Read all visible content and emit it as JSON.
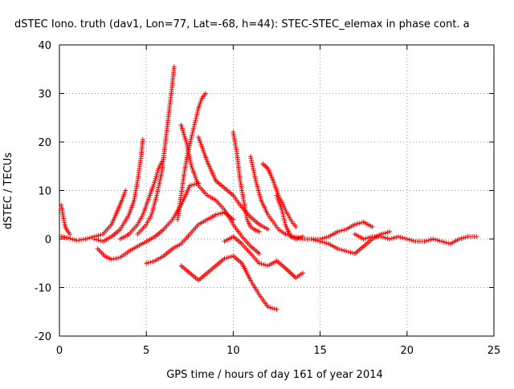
{
  "chart_data": {
    "type": "scatter",
    "title": "dSTEC Iono. truth (dav1, Lon=77, Lat=-68, h=44): STEC-STEC_elemax in phase cont. a",
    "xlabel": "GPS time / hours of day 161 of year 2014",
    "ylabel": "dSTEC  / TECUs",
    "xlim": [
      0,
      25
    ],
    "ylim": [
      -20,
      40
    ],
    "xticks": [
      0,
      5,
      10,
      15,
      20,
      25
    ],
    "yticks": [
      -20,
      -10,
      0,
      10,
      20,
      30,
      40
    ],
    "xtick_labels": [
      "0",
      "5",
      "10",
      "15",
      "20",
      "25"
    ],
    "ytick_labels": [
      "-20",
      "-10",
      "0",
      "10",
      "20",
      "30",
      "40"
    ],
    "grid": true,
    "marker": "+",
    "color": "#ff0000",
    "series": [
      {
        "x": [
          0.1,
          0.5,
          1.0,
          1.5,
          2.0,
          2.5,
          3.0,
          3.3,
          3.6,
          3.8
        ],
        "y": [
          0.5,
          0.2,
          -0.3,
          0.0,
          0.5,
          1.0,
          3.0,
          5.5,
          8.0,
          10.0
        ]
      },
      {
        "x": [
          2.0,
          2.5,
          3.0,
          3.5,
          4.0,
          4.3,
          4.5,
          4.7,
          4.8
        ],
        "y": [
          0.0,
          -0.5,
          0.5,
          2.0,
          5.0,
          8.0,
          12.0,
          17.0,
          20.5
        ]
      },
      {
        "x": [
          3.5,
          4.0,
          4.5,
          4.8,
          5.0,
          5.2,
          5.5,
          5.7,
          5.9
        ],
        "y": [
          0.0,
          1.0,
          3.0,
          5.0,
          7.0,
          9.0,
          12.0,
          14.5,
          16.0
        ]
      },
      {
        "x": [
          4.5,
          5.0,
          5.3,
          5.6,
          5.9,
          6.1,
          6.3,
          6.5,
          6.6
        ],
        "y": [
          1.0,
          3.0,
          5.0,
          9.0,
          14.0,
          20.0,
          26.0,
          32.0,
          35.5
        ]
      },
      {
        "x": [
          2.2,
          2.6,
          3.0,
          3.5,
          4.0,
          4.5,
          5.0,
          5.5,
          6.0,
          6.5,
          7.0,
          7.5,
          8.0
        ],
        "y": [
          -2.0,
          -3.5,
          -4.2,
          -3.8,
          -2.5,
          -1.5,
          -0.5,
          0.5,
          2.0,
          4.0,
          7.0,
          11.0,
          11.5
        ]
      },
      {
        "x": [
          6.8,
          7.0,
          7.2,
          7.4,
          7.6,
          7.8,
          8.0,
          8.2,
          8.4
        ],
        "y": [
          4.0,
          9.0,
          14.0,
          18.0,
          21.0,
          24.0,
          27.0,
          29.0,
          30.0
        ]
      },
      {
        "x": [
          7.0,
          7.3,
          7.6,
          8.0,
          8.5,
          9.0,
          9.5,
          10.0,
          10.5,
          11.0,
          11.5
        ],
        "y": [
          23.5,
          20.0,
          15.0,
          11.0,
          9.0,
          8.0,
          6.0,
          3.0,
          0.5,
          -1.5,
          -3.0
        ]
      },
      {
        "x": [
          8.0,
          8.5,
          9.0,
          9.5,
          10.0,
          10.5,
          11.0,
          11.5,
          12.0
        ],
        "y": [
          21.0,
          16.0,
          12.0,
          10.5,
          9.0,
          6.5,
          4.5,
          3.0,
          2.0
        ]
      },
      {
        "x": [
          10.0,
          10.2,
          10.4,
          10.6,
          10.8,
          11.0,
          11.2,
          11.5
        ],
        "y": [
          22.0,
          18.0,
          12.0,
          8.0,
          4.0,
          2.5,
          2.0,
          1.5
        ]
      },
      {
        "x": [
          11.0,
          11.3,
          11.6,
          12.0,
          12.3,
          12.6,
          13.0
        ],
        "y": [
          17.0,
          12.0,
          8.0,
          5.0,
          3.5,
          2.0,
          1.0
        ]
      },
      {
        "x": [
          11.7,
          12.0,
          12.3,
          12.6,
          13.0,
          13.3,
          13.6
        ],
        "y": [
          15.5,
          14.5,
          12.0,
          9.0,
          6.0,
          4.0,
          2.5
        ]
      },
      {
        "x": [
          12.5,
          12.8,
          13.0,
          13.3,
          13.6,
          14.0
        ],
        "y": [
          9.0,
          6.0,
          3.0,
          0.5,
          0.0,
          0.5
        ]
      },
      {
        "x": [
          5.0,
          5.5,
          6.0,
          6.5,
          7.0,
          7.5,
          8.0,
          8.5,
          9.0,
          9.5,
          10.0
        ],
        "y": [
          -5.0,
          -4.5,
          -3.5,
          -2.0,
          -1.0,
          1.0,
          3.0,
          4.0,
          5.0,
          5.5,
          4.0
        ]
      },
      {
        "x": [
          7.0,
          7.5,
          8.0,
          8.5,
          9.0,
          9.5,
          10.0,
          10.5,
          11.0,
          11.5,
          12.0,
          12.5
        ],
        "y": [
          -5.5,
          -7.0,
          -8.5,
          -7.0,
          -5.5,
          -4.0,
          -3.5,
          -5.0,
          -8.5,
          -11.5,
          -14.0,
          -14.5
        ]
      },
      {
        "x": [
          9.5,
          10.0,
          10.5,
          11.0,
          11.5,
          12.0,
          12.5,
          13.0,
          13.3,
          13.6,
          14.0
        ],
        "y": [
          -0.5,
          0.5,
          -1.0,
          -3.0,
          -5.0,
          -5.5,
          -4.5,
          -6.0,
          -7.0,
          -8.0,
          -7.0
        ]
      },
      {
        "x": [
          13.0,
          13.5,
          14.0,
          14.5,
          15.0,
          15.5,
          16.0,
          16.5,
          17.0,
          17.5,
          18.0
        ],
        "y": [
          1.0,
          0.5,
          0.0,
          0.0,
          0.0,
          0.5,
          1.5,
          2.0,
          3.0,
          3.5,
          2.5
        ]
      },
      {
        "x": [
          14.5,
          15.0,
          15.5,
          16.0,
          16.5,
          17.0,
          17.5,
          18.0,
          18.5,
          19.0
        ],
        "y": [
          0.0,
          -0.5,
          -1.0,
          -2.0,
          -2.5,
          -3.0,
          -1.5,
          0.0,
          1.0,
          1.5
        ]
      },
      {
        "x": [
          17.0,
          17.5,
          18.0,
          18.5,
          19.0,
          19.5,
          20.0,
          20.5,
          21.0,
          21.5,
          22.0,
          22.5,
          23.0,
          23.5,
          24.0
        ],
        "y": [
          1.0,
          0.0,
          0.5,
          0.5,
          0.0,
          0.5,
          0.0,
          -0.5,
          -0.5,
          0.0,
          -0.5,
          -1.0,
          0.0,
          0.5,
          0.5
        ]
      },
      {
        "x": [
          0.1,
          0.2,
          0.3,
          0.4,
          0.6
        ],
        "y": [
          7.0,
          5.0,
          3.0,
          2.0,
          1.0
        ]
      }
    ]
  }
}
